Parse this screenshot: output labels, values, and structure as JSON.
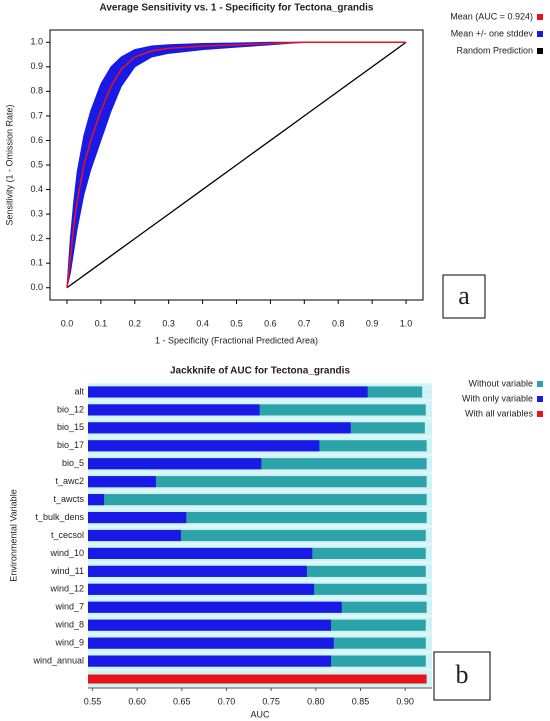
{
  "chart_data": [
    {
      "type": "line",
      "title": "Average Sensitivity vs. 1 - Specificity for Tectona_grandis",
      "xlabel": "1 - Specificity (Fractional Predicted Area)",
      "ylabel": "Sensitivity (1 - Omission Rate)",
      "panel_label": "a",
      "x": [
        0,
        0.01,
        0.02,
        0.03,
        0.05,
        0.07,
        0.1,
        0.13,
        0.16,
        0.2,
        0.25,
        0.3,
        0.4,
        0.5,
        0.6,
        0.7,
        1
      ],
      "series": [
        {
          "name": "Mean (AUC = 0.924)",
          "color": "#e8141a",
          "values": [
            0,
            0.12,
            0.25,
            0.35,
            0.5,
            0.6,
            0.72,
            0.82,
            0.89,
            0.94,
            0.965,
            0.975,
            0.985,
            0.99,
            0.995,
            1,
            1
          ]
        },
        {
          "name": "Mean +/- one stddev",
          "color": "#1a1ae6",
          "band": true,
          "upper": [
            0,
            0.2,
            0.35,
            0.47,
            0.62,
            0.72,
            0.83,
            0.9,
            0.94,
            0.97,
            0.985,
            0.99,
            0.995,
            0.997,
            1,
            1,
            1
          ],
          "lower": [
            0,
            0.06,
            0.15,
            0.24,
            0.38,
            0.48,
            0.6,
            0.72,
            0.82,
            0.9,
            0.94,
            0.955,
            0.97,
            0.98,
            0.99,
            1,
            1
          ]
        },
        {
          "name": "Random Prediction",
          "color": "#000000",
          "values": [
            0,
            0.01,
            0.02,
            0.03,
            0.05,
            0.07,
            0.1,
            0.13,
            0.16,
            0.2,
            0.25,
            0.3,
            0.4,
            0.5,
            0.6,
            0.7,
            1
          ]
        }
      ],
      "xlim": [
        -0.05,
        1.05
      ],
      "ylim": [
        -0.05,
        1.05
      ],
      "xticks": [
        {
          "value": 0,
          "label": "0.0"
        },
        0.1,
        0.2,
        0.3,
        0.4,
        0.5,
        0.6,
        0.7,
        0.8,
        0.9,
        {
          "value": 1,
          "label": "1.0"
        }
      ],
      "yticks": [
        {
          "value": 0,
          "label": "0.0"
        },
        0.1,
        0.2,
        0.3,
        0.4,
        0.5,
        0.6,
        0.7,
        0.8,
        0.9,
        {
          "value": 1,
          "label": "1.0"
        }
      ]
    },
    {
      "type": "bar",
      "title": "Jackknife of AUC for Tectona_grandis",
      "xlabel": "AUC",
      "ylabel": "Environmental Variable",
      "panel_label": "b",
      "orientation": "horizontal",
      "categories": [
        "alt",
        "bio_12",
        "bio_15",
        "bio_17",
        "bio_5",
        "t_awc2",
        "t_awcts",
        "t_bulk_dens",
        "t_cecsol",
        "wind_10",
        "wind_11",
        "wind_12",
        "wind_7",
        "wind_8",
        "wind_9",
        "wind_annual",
        null
      ],
      "series": [
        {
          "name": "Without variable",
          "color": "#2ba3a8",
          "values": [
            0.919,
            0.923,
            0.922,
            0.924,
            0.924,
            0.924,
            0.924,
            0.924,
            0.923,
            0.923,
            0.923,
            0.924,
            0.924,
            0.923,
            0.923,
            0.923,
            null
          ]
        },
        {
          "name": "With only variable",
          "color": "#1a1ae6",
          "values": [
            0.858,
            0.737,
            0.839,
            0.804,
            0.739,
            0.621,
            0.563,
            0.655,
            0.649,
            0.796,
            0.79,
            0.798,
            0.829,
            0.817,
            0.82,
            0.817,
            null
          ]
        },
        {
          "name": "With all variables",
          "color": "#e8141a",
          "values": [
            null,
            null,
            null,
            null,
            null,
            null,
            null,
            null,
            null,
            null,
            null,
            null,
            null,
            null,
            null,
            null,
            0.924
          ]
        }
      ],
      "xlim": [
        0.545,
        0.93
      ],
      "xticks": [
        0.55,
        {
          "value": 0.6,
          "label": "0.60"
        },
        0.65,
        {
          "value": 0.7,
          "label": "0.70"
        },
        0.75,
        {
          "value": 0.8,
          "label": "0.80"
        },
        0.85,
        {
          "value": 0.9,
          "label": "0.90"
        }
      ]
    }
  ]
}
